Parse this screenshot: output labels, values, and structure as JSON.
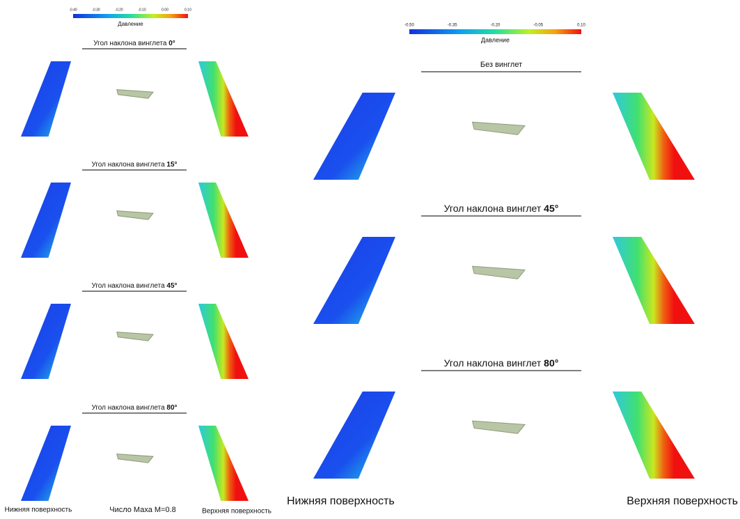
{
  "left_panel": {
    "colorbar": {
      "ticks": [
        "-0.40",
        "-0.30",
        "-0.20",
        "-0.10",
        "0.00",
        "0.10"
      ],
      "label": "Давление"
    },
    "sections": [
      {
        "title": "Угол наклона винглета",
        "angle": "0°"
      },
      {
        "title": "Угол наклона винглета",
        "angle": "15°"
      },
      {
        "title": "Угол наклона винглета",
        "angle": "45°"
      },
      {
        "title": "Угол наклона винглета",
        "angle": "80°"
      }
    ],
    "footer": {
      "lower": "Нижняя поверхность",
      "mach": "Число Маха M=0.8",
      "upper": "Верхняя поверхность"
    }
  },
  "right_panel": {
    "colorbar": {
      "ticks": [
        "-0.50",
        "-0.35",
        "-0.20",
        "-0.05",
        "0.10"
      ],
      "label": "Давление"
    },
    "sections": [
      {
        "title": "Без винглет"
      },
      {
        "title": "Угол наклона винглет",
        "angle": "45°"
      },
      {
        "title": "Угол наклона винглет",
        "angle": "80°"
      }
    ],
    "footer": {
      "lower": "Нижняя поверхность",
      "upper": "Верхняя поверхность"
    }
  }
}
